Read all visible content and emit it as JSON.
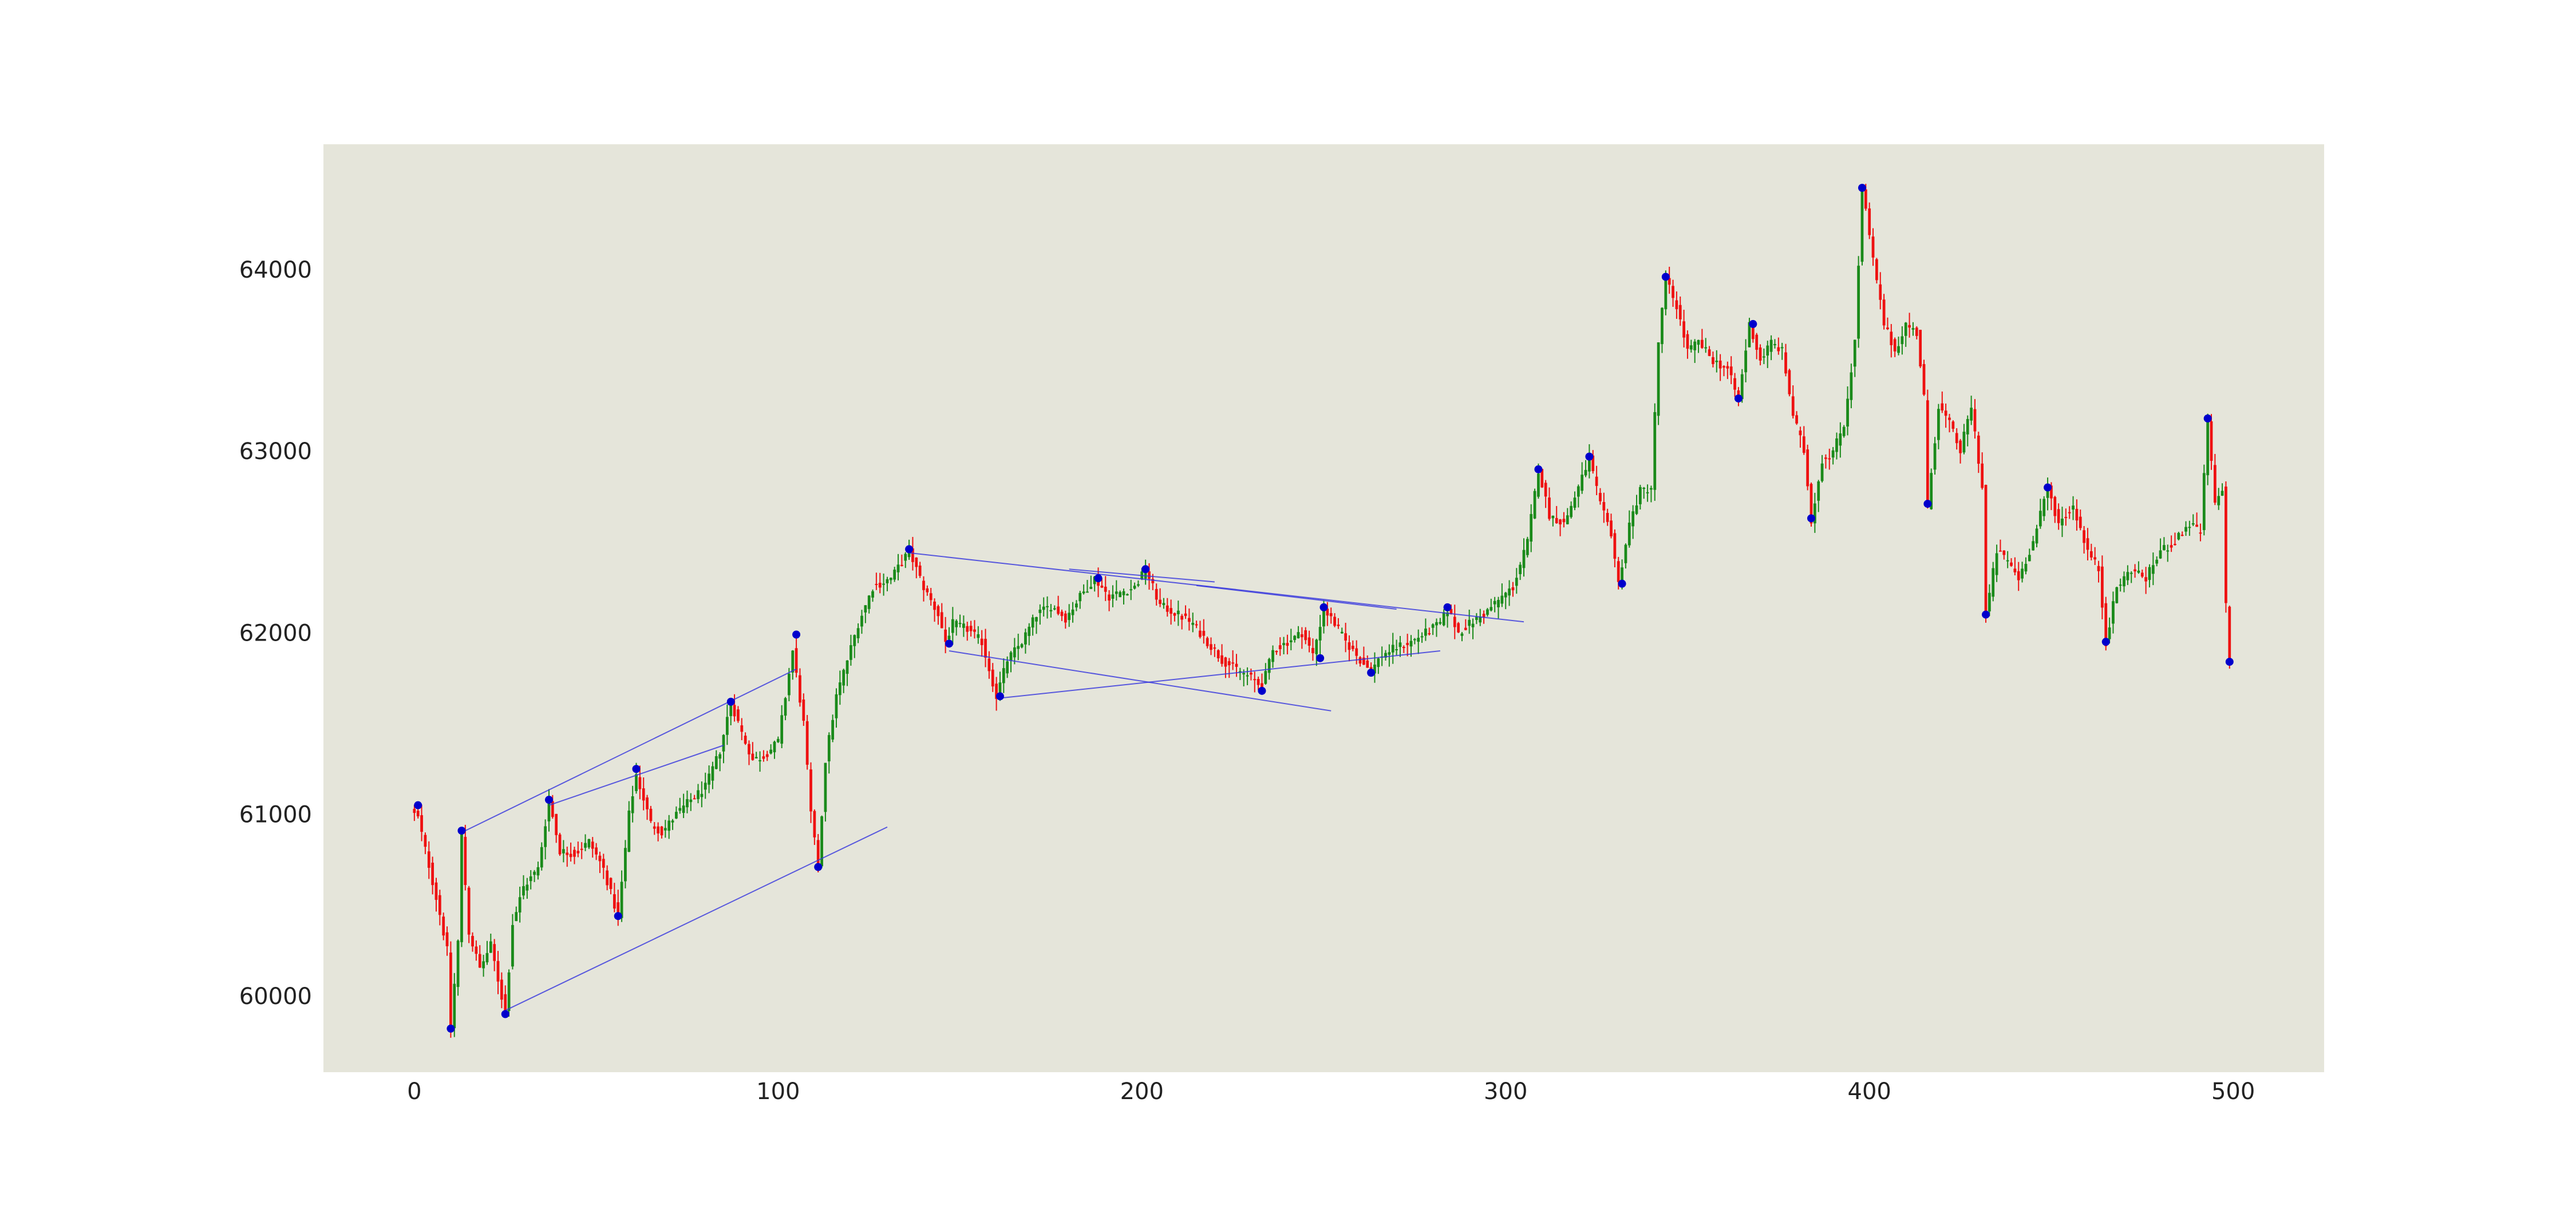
{
  "chart_data": {
    "type": "candlestick",
    "title": "",
    "xlabel": "",
    "ylabel": "",
    "xlim": [
      -25,
      525
    ],
    "ylim": [
      59580,
      64690
    ],
    "x_ticks": [
      0,
      100,
      200,
      300,
      400,
      500
    ],
    "x_tick_labels": [
      "0",
      "100",
      "200",
      "300",
      "400",
      "500"
    ],
    "y_ticks": [
      60000,
      61000,
      62000,
      63000,
      64000
    ],
    "y_tick_labels": [
      "60000",
      "61000",
      "62000",
      "63000",
      "64000"
    ],
    "grid": false,
    "legend": "none",
    "colors": {
      "plot_background": "#e5e5da",
      "up_candle": "#1a8a1a",
      "down_candle": "#ee1111",
      "pivot_marker": "#0000cc",
      "trendline": "#3333dd"
    },
    "price_path": [
      [
        0,
        61000
      ],
      [
        1,
        60980
      ],
      [
        4,
        60720
      ],
      [
        7,
        60450
      ],
      [
        9,
        60250
      ],
      [
        10,
        59830
      ],
      [
        12,
        60300
      ],
      [
        13,
        60880
      ],
      [
        15,
        60350
      ],
      [
        18,
        60150
      ],
      [
        21,
        60280
      ],
      [
        25,
        59900
      ],
      [
        27,
        60400
      ],
      [
        30,
        60600
      ],
      [
        34,
        60700
      ],
      [
        37,
        61080
      ],
      [
        40,
        60800
      ],
      [
        44,
        60780
      ],
      [
        48,
        60850
      ],
      [
        52,
        60700
      ],
      [
        56,
        60430
      ],
      [
        59,
        61000
      ],
      [
        61,
        61220
      ],
      [
        65,
        60950
      ],
      [
        68,
        60900
      ],
      [
        72,
        61000
      ],
      [
        76,
        61080
      ],
      [
        80,
        61150
      ],
      [
        84,
        61350
      ],
      [
        87,
        61620
      ],
      [
        90,
        61450
      ],
      [
        93,
        61300
      ],
      [
        96,
        61320
      ],
      [
        100,
        61400
      ],
      [
        104,
        61900
      ],
      [
        107,
        61500
      ],
      [
        109,
        61000
      ],
      [
        111,
        60700
      ],
      [
        113,
        61300
      ],
      [
        116,
        61650
      ],
      [
        119,
        61850
      ],
      [
        122,
        62050
      ],
      [
        126,
        62250
      ],
      [
        131,
        62300
      ],
      [
        136,
        62450
      ],
      [
        140,
        62250
      ],
      [
        144,
        62100
      ],
      [
        146,
        61950
      ],
      [
        148,
        62050
      ],
      [
        152,
        62020
      ],
      [
        156,
        61950
      ],
      [
        160,
        61650
      ],
      [
        163,
        61850
      ],
      [
        167,
        61950
      ],
      [
        171,
        62100
      ],
      [
        175,
        62150
      ],
      [
        179,
        62080
      ],
      [
        183,
        62200
      ],
      [
        187,
        62300
      ],
      [
        191,
        62200
      ],
      [
        195,
        62230
      ],
      [
        198,
        62250
      ],
      [
        201,
        62350
      ],
      [
        205,
        62150
      ],
      [
        210,
        62100
      ],
      [
        214,
        62050
      ],
      [
        218,
        61950
      ],
      [
        222,
        61850
      ],
      [
        226,
        61800
      ],
      [
        230,
        61750
      ],
      [
        233,
        61700
      ],
      [
        236,
        61900
      ],
      [
        240,
        61950
      ],
      [
        244,
        62000
      ],
      [
        247,
        61880
      ],
      [
        250,
        62130
      ],
      [
        253,
        62050
      ],
      [
        256,
        61950
      ],
      [
        260,
        61850
      ],
      [
        263,
        61790
      ],
      [
        266,
        61880
      ],
      [
        270,
        61920
      ],
      [
        274,
        61950
      ],
      [
        278,
        62000
      ],
      [
        282,
        62050
      ],
      [
        284,
        62130
      ],
      [
        287,
        62000
      ],
      [
        290,
        62050
      ],
      [
        294,
        62100
      ],
      [
        298,
        62180
      ],
      [
        302,
        62250
      ],
      [
        306,
        62500
      ],
      [
        309,
        62900
      ],
      [
        312,
        62650
      ],
      [
        316,
        62600
      ],
      [
        320,
        62800
      ],
      [
        323,
        62960
      ],
      [
        326,
        62700
      ],
      [
        329,
        62550
      ],
      [
        331,
        62270
      ],
      [
        334,
        62600
      ],
      [
        337,
        62780
      ],
      [
        340,
        62800
      ],
      [
        342,
        63600
      ],
      [
        344,
        63950
      ],
      [
        347,
        63800
      ],
      [
        350,
        63550
      ],
      [
        353,
        63600
      ],
      [
        357,
        63500
      ],
      [
        361,
        63450
      ],
      [
        364,
        63280
      ],
      [
        367,
        63700
      ],
      [
        370,
        63500
      ],
      [
        373,
        63600
      ],
      [
        376,
        63550
      ],
      [
        379,
        63200
      ],
      [
        382,
        63000
      ],
      [
        384,
        62620
      ],
      [
        387,
        62950
      ],
      [
        390,
        63000
      ],
      [
        393,
        63150
      ],
      [
        396,
        63600
      ],
      [
        398,
        64450
      ],
      [
        401,
        64050
      ],
      [
        404,
        63700
      ],
      [
        407,
        63550
      ],
      [
        410,
        63700
      ],
      [
        413,
        63650
      ],
      [
        415,
        63300
      ],
      [
        416,
        62700
      ],
      [
        419,
        63250
      ],
      [
        422,
        63150
      ],
      [
        425,
        63000
      ],
      [
        428,
        63250
      ],
      [
        431,
        62800
      ],
      [
        432,
        62100
      ],
      [
        435,
        62450
      ],
      [
        438,
        62400
      ],
      [
        441,
        62300
      ],
      [
        445,
        62500
      ],
      [
        449,
        62800
      ],
      [
        452,
        62600
      ],
      [
        456,
        62700
      ],
      [
        460,
        62450
      ],
      [
        463,
        62350
      ],
      [
        465,
        61950
      ],
      [
        468,
        62250
      ],
      [
        472,
        62350
      ],
      [
        476,
        62300
      ],
      [
        480,
        62450
      ],
      [
        484,
        62500
      ],
      [
        488,
        62600
      ],
      [
        491,
        62550
      ],
      [
        493,
        63170
      ],
      [
        495,
        62700
      ],
      [
        497,
        62800
      ],
      [
        498,
        62150
      ],
      [
        499,
        61850
      ]
    ],
    "pivot_points": [
      [
        1,
        61050
      ],
      [
        10,
        59820
      ],
      [
        13,
        60910
      ],
      [
        25,
        59900
      ],
      [
        37,
        61080
      ],
      [
        56,
        60440
      ],
      [
        61,
        61250
      ],
      [
        87,
        61620
      ],
      [
        105,
        61990
      ],
      [
        111,
        60710
      ],
      [
        136,
        62460
      ],
      [
        147,
        61940
      ],
      [
        161,
        61650
      ],
      [
        188,
        62300
      ],
      [
        201,
        62350
      ],
      [
        233,
        61680
      ],
      [
        249,
        61860
      ],
      [
        250,
        62140
      ],
      [
        263,
        61780
      ],
      [
        284,
        62140
      ],
      [
        309,
        62900
      ],
      [
        323,
        62970
      ],
      [
        332,
        62270
      ],
      [
        344,
        63960
      ],
      [
        364,
        63290
      ],
      [
        368,
        63700
      ],
      [
        384,
        62630
      ],
      [
        398,
        64450
      ],
      [
        416,
        62710
      ],
      [
        432,
        62100
      ],
      [
        449,
        62800
      ],
      [
        465,
        61950
      ],
      [
        493,
        63180
      ],
      [
        499,
        61840
      ]
    ],
    "trendlines": [
      {
        "x": [
          13,
          105
        ],
        "y": [
          60900,
          61800
        ]
      },
      {
        "x": [
          37,
          85
        ],
        "y": [
          61050,
          61380
        ]
      },
      {
        "x": [
          25,
          130
        ],
        "y": [
          59920,
          60930
        ]
      },
      {
        "x": [
          136,
          305
        ],
        "y": [
          62440,
          62060
        ]
      },
      {
        "x": [
          180,
          220
        ],
        "y": [
          62350,
          62280
        ]
      },
      {
        "x": [
          215,
          270
        ],
        "y": [
          62260,
          62130
        ]
      },
      {
        "x": [
          147,
          252
        ],
        "y": [
          61900,
          61570
        ]
      },
      {
        "x": [
          161,
          282
        ],
        "y": [
          61640,
          61900
        ]
      }
    ]
  }
}
